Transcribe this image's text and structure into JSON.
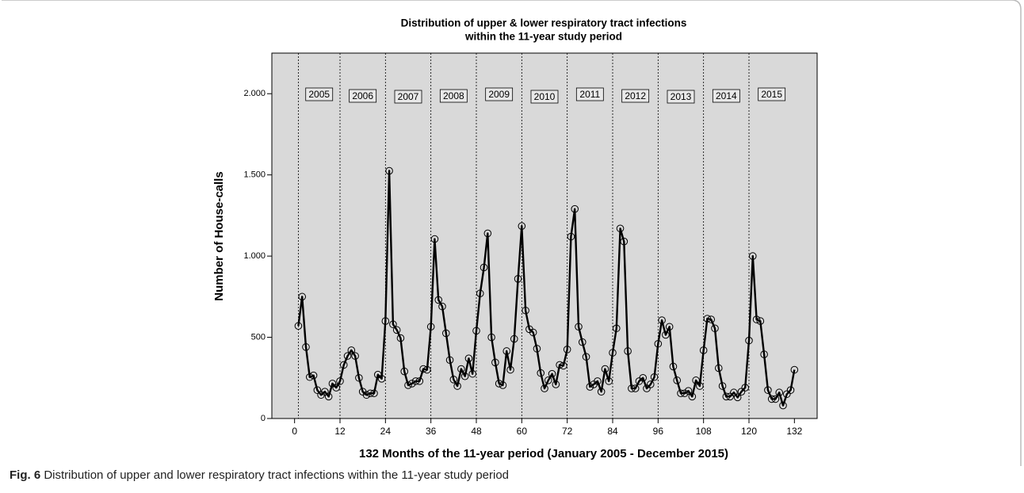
{
  "chart_data": {
    "type": "line",
    "title": [
      "Distribution of upper & lower respiratory tract infections",
      "within the 11-year study period"
    ],
    "x_label": "132 Months of the 11-year period (January 2005 - December 2015)",
    "y_label": "Number of House-calls",
    "color": "#000000",
    "x": [
      1,
      2,
      3,
      4,
      5,
      6,
      7,
      8,
      9,
      10,
      11,
      12,
      13,
      14,
      15,
      16,
      17,
      18,
      19,
      20,
      21,
      22,
      23,
      24,
      25,
      26,
      27,
      28,
      29,
      30,
      31,
      32,
      33,
      34,
      35,
      36,
      37,
      38,
      39,
      40,
      41,
      42,
      43,
      44,
      45,
      46,
      47,
      48,
      49,
      50,
      51,
      52,
      53,
      54,
      55,
      56,
      57,
      58,
      59,
      60,
      61,
      62,
      63,
      64,
      65,
      66,
      67,
      68,
      69,
      70,
      71,
      72,
      73,
      74,
      75,
      76,
      77,
      78,
      79,
      80,
      81,
      82,
      83,
      84,
      85,
      86,
      87,
      88,
      89,
      90,
      91,
      92,
      93,
      94,
      95,
      96,
      97,
      98,
      99,
      100,
      101,
      102,
      103,
      104,
      105,
      106,
      107,
      108,
      109,
      110,
      111,
      112,
      113,
      114,
      115,
      116,
      117,
      118,
      119,
      120,
      121,
      122,
      123,
      124,
      125,
      126,
      127,
      128,
      129,
      130,
      131,
      132
    ],
    "values": [
      570,
      750,
      440,
      255,
      265,
      175,
      145,
      165,
      135,
      215,
      190,
      230,
      330,
      385,
      420,
      385,
      250,
      165,
      145,
      155,
      155,
      270,
      245,
      600,
      1525,
      580,
      545,
      495,
      290,
      205,
      215,
      230,
      230,
      305,
      300,
      565,
      1105,
      730,
      690,
      525,
      360,
      240,
      200,
      305,
      260,
      370,
      275,
      540,
      770,
      930,
      1140,
      500,
      345,
      215,
      205,
      415,
      300,
      490,
      860,
      1185,
      665,
      550,
      530,
      430,
      280,
      185,
      235,
      275,
      210,
      330,
      325,
      425,
      1120,
      1290,
      565,
      470,
      380,
      195,
      210,
      230,
      165,
      305,
      230,
      405,
      555,
      1170,
      1090,
      415,
      185,
      185,
      230,
      250,
      185,
      210,
      255,
      460,
      605,
      515,
      565,
      320,
      235,
      155,
      155,
      170,
      135,
      235,
      200,
      420,
      615,
      610,
      555,
      310,
      200,
      135,
      135,
      160,
      130,
      165,
      190,
      480,
      1000,
      610,
      600,
      395,
      175,
      120,
      120,
      160,
      80,
      150,
      175,
      300
    ],
    "xlim": [
      -6,
      138
    ],
    "xticks": [
      0,
      12,
      24,
      36,
      48,
      60,
      72,
      84,
      96,
      108,
      120,
      132
    ],
    "ylim": [
      0,
      2250
    ],
    "yticks": [
      {
        "value": 0,
        "label": "0"
      },
      {
        "value": 500,
        "label": "500"
      },
      {
        "value": 1000,
        "label": "1.000"
      },
      {
        "value": 1500,
        "label": "1.500"
      },
      {
        "value": 2000,
        "label": "2.000"
      }
    ],
    "year_lines": [
      1,
      12,
      24,
      36,
      48,
      60,
      72,
      84,
      96,
      108,
      120
    ],
    "year_labels": [
      "2005",
      "2006",
      "2007",
      "2008",
      "2009",
      "2010",
      "2011",
      "2012",
      "2013",
      "2014",
      "2015"
    ]
  },
  "caption_label": "Fig. 6",
  "caption_text": "Distribution of upper and lower respiratory tract infections within the 11-year study period"
}
